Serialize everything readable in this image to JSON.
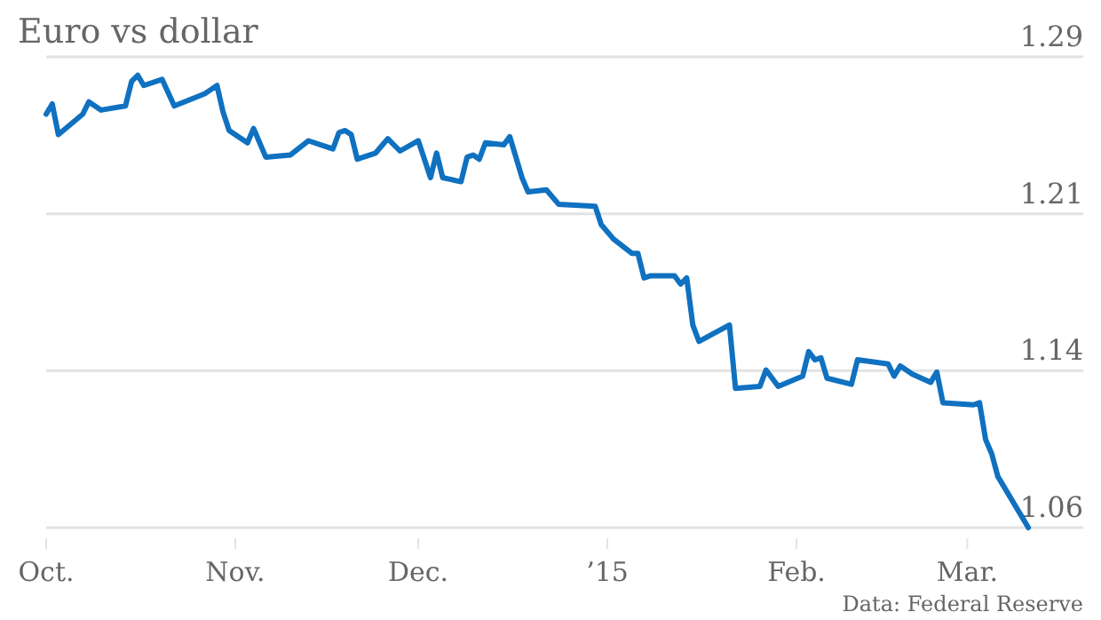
{
  "chart_data": {
    "type": "line",
    "title": "Euro vs dollar",
    "annotations": [
      "Data: Federal Reserve"
    ],
    "xlim": [
      "2014-10-01",
      "2015-03-20"
    ],
    "xticks": [
      {
        "value": "2014-10-01",
        "label": "Oct."
      },
      {
        "value": "2014-11-01",
        "label": "Nov."
      },
      {
        "value": "2014-12-01",
        "label": "Dec."
      },
      {
        "value": "2015-01-01",
        "label": "’15"
      },
      {
        "value": "2015-02-01",
        "label": "Feb."
      },
      {
        "value": "2015-03-01",
        "label": "Mar."
      }
    ],
    "ylim": [
      1.06,
      1.29
    ],
    "yticks": [
      1.06,
      {
        "value": 1.1367,
        "label": "1.14"
      },
      {
        "value": 1.2133,
        "label": "1.21"
      },
      1.29
    ],
    "grid": "y",
    "marker": "none",
    "line_style": "solid",
    "series": [
      {
        "color": "#0f71c0",
        "x": [
          "2014-10-01",
          "2014-10-02",
          "2014-10-03",
          "2014-10-07",
          "2014-10-08",
          "2014-10-10",
          "2014-10-14",
          "2014-10-15",
          "2014-10-16",
          "2014-10-17",
          "2014-10-20",
          "2014-10-22",
          "2014-10-27",
          "2014-10-28",
          "2014-10-29",
          "2014-10-30",
          "2014-10-31",
          "2014-11-03",
          "2014-11-04",
          "2014-11-06",
          "2014-11-10",
          "2014-11-13",
          "2014-11-17",
          "2014-11-18",
          "2014-11-19",
          "2014-11-20",
          "2014-11-21",
          "2014-11-24",
          "2014-11-26",
          "2014-11-28",
          "2014-12-01",
          "2014-12-03",
          "2014-12-04",
          "2014-12-05",
          "2014-12-08",
          "2014-12-09",
          "2014-12-10",
          "2014-12-11",
          "2014-12-12",
          "2014-12-15",
          "2014-12-16",
          "2014-12-18",
          "2014-12-19",
          "2014-12-22",
          "2014-12-24",
          "2014-12-30",
          "2014-12-31",
          "2015-01-02",
          "2015-01-05",
          "2015-01-06",
          "2015-01-07",
          "2015-01-08",
          "2015-01-12",
          "2015-01-13",
          "2015-01-14",
          "2015-01-15",
          "2015-01-16",
          "2015-01-21",
          "2015-01-22",
          "2015-01-26",
          "2015-01-27",
          "2015-01-29",
          "2015-02-02",
          "2015-02-03",
          "2015-02-04",
          "2015-02-05",
          "2015-02-06",
          "2015-02-10",
          "2015-02-11",
          "2015-02-16",
          "2015-02-17",
          "2015-02-18",
          "2015-02-20",
          "2015-02-23",
          "2015-02-24",
          "2015-02-25",
          "2015-03-02",
          "2015-03-03",
          "2015-03-04",
          "2015-03-05",
          "2015-03-06",
          "2015-03-11"
        ],
        "values": [
          1.262,
          1.267,
          1.252,
          1.262,
          1.268,
          1.264,
          1.266,
          1.278,
          1.281,
          1.276,
          1.279,
          1.266,
          1.272,
          1.274,
          1.276,
          1.263,
          1.254,
          1.248,
          1.255,
          1.241,
          1.242,
          1.249,
          1.245,
          1.253,
          1.254,
          1.252,
          1.24,
          1.243,
          1.25,
          1.244,
          1.249,
          1.231,
          1.243,
          1.231,
          1.229,
          1.241,
          1.242,
          1.24,
          1.248,
          1.247,
          1.251,
          1.231,
          1.224,
          1.225,
          1.218,
          1.217,
          1.208,
          1.201,
          1.194,
          1.194,
          1.182,
          1.183,
          1.183,
          1.179,
          1.182,
          1.159,
          1.151,
          1.159,
          1.128,
          1.129,
          1.137,
          1.129,
          1.134,
          1.146,
          1.142,
          1.143,
          1.133,
          1.13,
          1.142,
          1.14,
          1.134,
          1.139,
          1.135,
          1.131,
          1.136,
          1.121,
          1.12,
          1.121,
          1.103,
          1.096,
          1.085,
          1.06
        ]
      }
    ]
  }
}
